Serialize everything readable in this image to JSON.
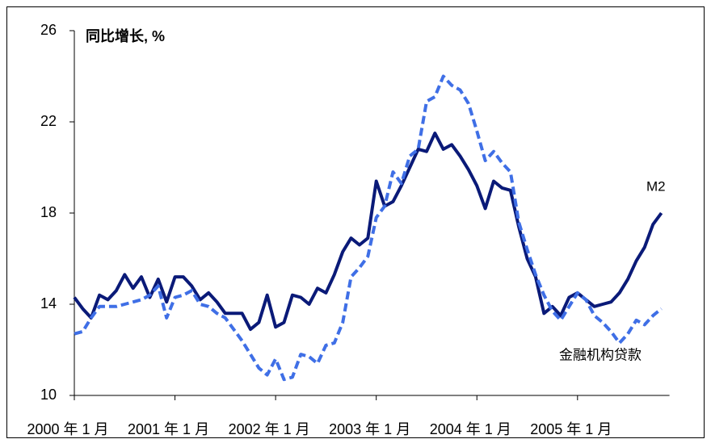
{
  "chart_data": {
    "type": "line",
    "ylabel": "同比增长, %",
    "categories": [
      "2000 年 1 月",
      null,
      null,
      null,
      null,
      null,
      null,
      null,
      null,
      null,
      null,
      null,
      "2001 年 1 月",
      null,
      null,
      null,
      null,
      null,
      null,
      null,
      null,
      null,
      null,
      null,
      "2002 年 1 月",
      null,
      null,
      null,
      null,
      null,
      null,
      null,
      null,
      null,
      null,
      null,
      "2003 年 1 月",
      null,
      null,
      null,
      null,
      null,
      null,
      null,
      null,
      null,
      null,
      null,
      "2004 年 1 月",
      null,
      null,
      null,
      null,
      null,
      null,
      null,
      null,
      null,
      null,
      null,
      "2005 年 1 月",
      null,
      null,
      null,
      null,
      null,
      null,
      null,
      null,
      null,
      null
    ],
    "series": [
      {
        "name": "M2",
        "color": "#0a1a78",
        "dashed": false,
        "values": [
          14.3,
          13.8,
          13.4,
          14.4,
          14.2,
          14.6,
          15.3,
          14.7,
          15.2,
          14.3,
          15.1,
          14.1,
          15.2,
          15.2,
          14.8,
          14.2,
          14.5,
          14.1,
          13.6,
          13.6,
          13.6,
          12.9,
          13.2,
          14.4,
          13.0,
          13.2,
          14.4,
          14.3,
          14.0,
          14.7,
          14.5,
          15.3,
          16.3,
          16.9,
          16.6,
          16.9,
          19.4,
          18.3,
          18.5,
          19.2,
          20.0,
          20.8,
          20.7,
          21.5,
          20.8,
          21.0,
          20.5,
          19.9,
          19.2,
          18.2,
          19.4,
          19.1,
          19.0,
          17.4,
          16.0,
          15.2,
          13.6,
          13.9,
          13.5,
          14.3,
          14.5,
          14.2,
          13.9,
          14.0,
          14.1,
          14.5,
          15.1,
          15.9,
          16.5,
          17.5,
          18.0
        ]
      },
      {
        "name": "金融机构贷款",
        "color": "#3f6fe6",
        "dashed": true,
        "values": [
          12.7,
          12.8,
          13.4,
          13.9,
          13.9,
          13.9,
          14.0,
          14.1,
          14.2,
          14.4,
          14.8,
          13.4,
          14.3,
          14.4,
          14.6,
          14.0,
          13.9,
          13.6,
          13.4,
          12.9,
          12.4,
          11.8,
          11.2,
          10.9,
          11.6,
          10.7,
          10.8,
          11.8,
          11.7,
          11.4,
          12.2,
          12.3,
          13.2,
          15.2,
          15.6,
          16.1,
          17.8,
          18.3,
          19.8,
          19.3,
          20.5,
          20.8,
          22.9,
          23.1,
          24.0,
          23.6,
          23.4,
          22.8,
          21.6,
          20.3,
          20.7,
          20.2,
          19.8,
          17.6,
          16.4,
          15.3,
          14.4,
          13.7,
          13.3,
          13.9,
          14.5,
          14.2,
          13.5,
          13.2,
          12.8,
          12.3,
          12.7,
          13.3,
          13.1,
          13.5,
          13.8
        ]
      }
    ],
    "ylim": [
      10,
      26
    ],
    "yticks": [
      10,
      14,
      18,
      22,
      26
    ],
    "grid": false
  }
}
